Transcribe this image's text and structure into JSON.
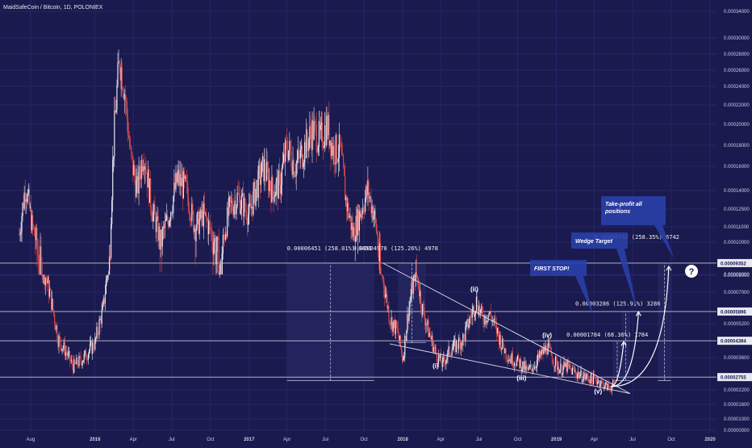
{
  "header": {
    "title": "MaidSafeCoin / Bitcoin, 1D, POLONIEX"
  },
  "colors": {
    "background": "#1a1a4e",
    "grid": "#25256a",
    "candle_up": "#e8e8f0",
    "candle_down": "#d94a4a",
    "level_line": "#c8c8d8",
    "zone_fill": "#262660",
    "callout_fill": "#2a3fa8"
  },
  "chart_data": {
    "type": "candlestick",
    "title": "MaidSafeCoin / Bitcoin, 1D, POLONIEX",
    "x_ticks": [
      "Aug",
      "2016",
      "Apr",
      "Jul",
      "Oct",
      "2017",
      "Apr",
      "Jul",
      "Oct",
      "2018",
      "Apr",
      "Jul",
      "Oct",
      "2019",
      "Apr",
      "Jul",
      "Oct",
      "2020"
    ],
    "x_tick_dates": [
      "2015-08-01",
      "2016-01-01",
      "2016-04-01",
      "2016-07-01",
      "2016-10-01",
      "2017-01-01",
      "2017-04-01",
      "2017-07-01",
      "2017-10-01",
      "2018-01-01",
      "2018-04-01",
      "2018-07-01",
      "2018-10-01",
      "2019-01-01",
      "2019-04-01",
      "2019-07-01",
      "2019-10-01",
      "2020-01-01"
    ],
    "y_ticks": [
      "0.00034000",
      "0.00030000",
      "0.00028000",
      "0.00026000",
      "0.00024000",
      "0.00022000",
      "0.00020000",
      "0.00018000",
      "0.00016000",
      "0.00014000",
      "0.00012500",
      "0.00011000",
      "0.00010000",
      "0.00009000",
      "0.00008000",
      "0.00007000",
      "0.00005200",
      "0.00003600",
      "0.00002200",
      "0.00001600",
      "0.00001000",
      "0.00000000"
    ],
    "y_scale": "log",
    "horizontal_levels": [
      {
        "label": "0.00009352",
        "value": 9.352e-05
      },
      {
        "label": "0.00005896",
        "value": 5.896e-05
      },
      {
        "label": "0.00004394",
        "value": 4.394e-05
      },
      {
        "label": "0.00002755",
        "value": 2.755e-05
      }
    ],
    "price_path": [
      [
        "2015-07-05",
        0.000105
      ],
      [
        "2015-07-20",
        0.000145
      ],
      [
        "2015-08-05",
        0.00011
      ],
      [
        "2015-08-25",
        9e-05
      ],
      [
        "2015-09-15",
        7e-05
      ],
      [
        "2015-10-05",
        4.5e-05
      ],
      [
        "2015-10-20",
        4e-05
      ],
      [
        "2015-11-10",
        3.2e-05
      ],
      [
        "2015-12-05",
        3.6e-05
      ],
      [
        "2016-01-01",
        4.3e-05
      ],
      [
        "2016-01-20",
        6e-05
      ],
      [
        "2016-02-05",
        9.5e-05
      ],
      [
        "2016-02-15",
        0.00019
      ],
      [
        "2016-02-28",
        0.000275
      ],
      [
        "2016-03-10",
        0.00024
      ],
      [
        "2016-03-25",
        0.00017
      ],
      [
        "2016-04-10",
        0.00014
      ],
      [
        "2016-04-25",
        0.000175
      ],
      [
        "2016-05-15",
        0.000125
      ],
      [
        "2016-06-05",
        0.0001
      ],
      [
        "2016-06-25",
        0.00012
      ],
      [
        "2016-07-15",
        0.00015
      ],
      [
        "2016-08-05",
        0.00014
      ],
      [
        "2016-08-25",
        0.00011
      ],
      [
        "2016-09-15",
        0.00012
      ],
      [
        "2016-10-05",
        0.000105
      ],
      [
        "2016-10-25",
        9e-05
      ],
      [
        "2016-11-15",
        0.000125
      ],
      [
        "2016-12-05",
        0.000135
      ],
      [
        "2017-01-01",
        0.00012
      ],
      [
        "2017-01-20",
        0.000145
      ],
      [
        "2017-02-05",
        0.00016
      ],
      [
        "2017-02-25",
        0.00014
      ],
      [
        "2017-03-15",
        0.000145
      ],
      [
        "2017-04-01",
        0.00018
      ],
      [
        "2017-04-20",
        0.00016
      ],
      [
        "2017-05-10",
        0.000175
      ],
      [
        "2017-06-01",
        0.000195
      ],
      [
        "2017-06-20",
        0.000185
      ],
      [
        "2017-07-05",
        0.0002
      ],
      [
        "2017-07-20",
        0.000175
      ],
      [
        "2017-08-05",
        0.000175
      ],
      [
        "2017-08-20",
        0.00013
      ],
      [
        "2017-09-05",
        0.000105
      ],
      [
        "2017-09-25",
        0.000125
      ],
      [
        "2017-10-10",
        0.00014
      ],
      [
        "2017-10-25",
        0.00012
      ],
      [
        "2017-11-10",
        8.5e-05
      ],
      [
        "2017-12-01",
        5.5e-05
      ],
      [
        "2017-12-20",
        4.8e-05
      ],
      [
        "2018-01-01",
        3.5e-05
      ],
      [
        "2018-01-15",
        6e-05
      ],
      [
        "2018-02-01",
        8.5e-05
      ],
      [
        "2018-02-15",
        6.2e-05
      ],
      [
        "2018-03-01",
        5e-05
      ],
      [
        "2018-03-20",
        3.8e-05
      ],
      [
        "2018-04-05",
        3.3e-05
      ],
      [
        "2018-04-25",
        4e-05
      ],
      [
        "2018-05-10",
        4.2e-05
      ],
      [
        "2018-05-25",
        4.5e-05
      ],
      [
        "2018-06-10",
        5.5e-05
      ],
      [
        "2018-06-25",
        6.5e-05
      ],
      [
        "2018-07-10",
        5.5e-05
      ],
      [
        "2018-07-25",
        5.8e-05
      ],
      [
        "2018-08-10",
        5e-05
      ],
      [
        "2018-08-25",
        4.2e-05
      ],
      [
        "2018-09-10",
        3.6e-05
      ],
      [
        "2018-09-25",
        3.5e-05
      ],
      [
        "2018-10-10",
        3.3e-05
      ],
      [
        "2018-10-25",
        3e-05
      ],
      [
        "2018-11-10",
        3.3e-05
      ],
      [
        "2018-11-25",
        3.7e-05
      ],
      [
        "2018-12-10",
        4.1e-05
      ],
      [
        "2018-12-25",
        3.5e-05
      ],
      [
        "2019-01-10",
        3.1e-05
      ],
      [
        "2019-01-25",
        3.2e-05
      ],
      [
        "2019-02-10",
        3e-05
      ],
      [
        "2019-03-01",
        2.8e-05
      ],
      [
        "2019-03-20",
        2.7e-05
      ],
      [
        "2019-04-10",
        2.6e-05
      ],
      [
        "2019-04-25",
        2.4e-05
      ],
      [
        "2019-05-05",
        2.3e-05
      ],
      [
        "2019-05-20",
        2.4e-05
      ]
    ],
    "annotations": [
      {
        "text": "0.00006451 (258.01%) 6451"
      },
      {
        "text": "0.00004978 (125.26%) 4978"
      },
      {
        "text": "0.00001784 (68.36%) 1784"
      },
      {
        "text": "0.00003286 (125.91%) 3286"
      },
      {
        "text": "0.00006742 (258.35%) 6742"
      }
    ],
    "wave_labels": [
      "(i)",
      "(ii)",
      "(iii)",
      "(iv)",
      "(v)"
    ],
    "callouts": [
      "FIRST STOP!",
      "Wedge Target",
      "Take-profit all positions"
    ],
    "question_mark": "?"
  }
}
